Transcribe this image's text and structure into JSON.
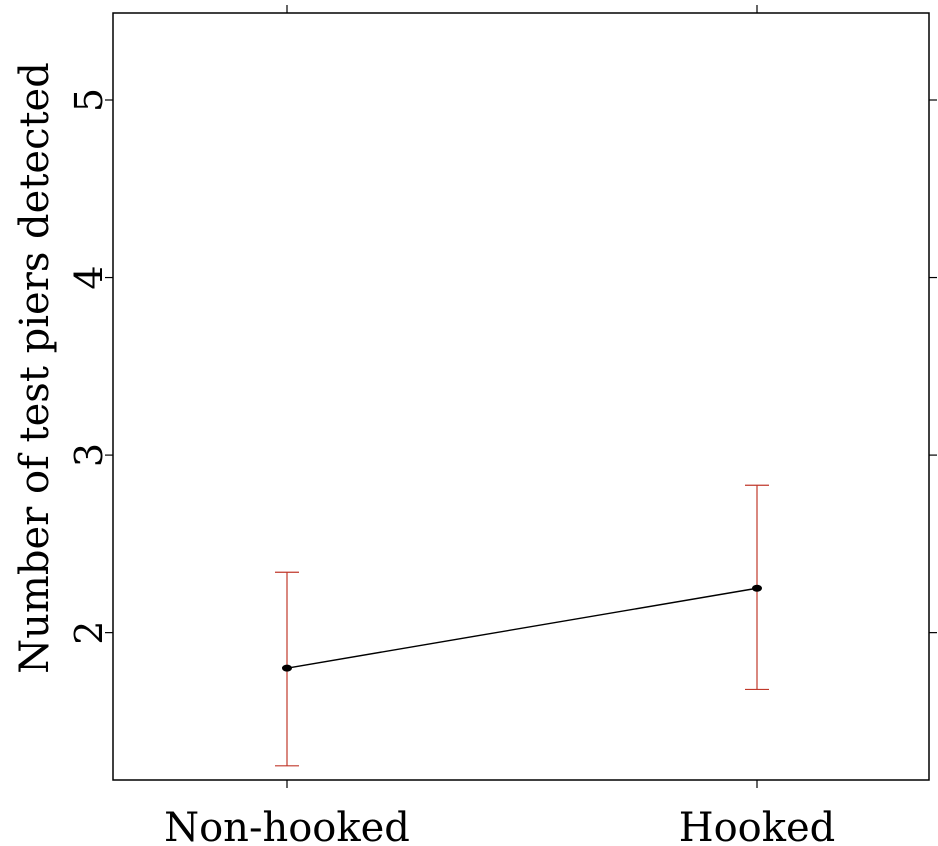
{
  "chart_data": {
    "type": "line",
    "title": "",
    "xlabel": "",
    "ylabel": "Number of test piers detected",
    "categories": [
      "Non-hooked",
      "Hooked"
    ],
    "yticks": [
      2,
      3,
      4,
      5
    ],
    "ylim": [
      1.17,
      5.49
    ],
    "grid": false,
    "series": [
      {
        "values": [
          1.8,
          2.25
        ],
        "lower": [
          1.25,
          1.68
        ],
        "upper": [
          2.34,
          2.83
        ]
      }
    ],
    "colors": {
      "line": "#000000",
      "error_bars": "#c0392b",
      "frame": "#000000"
    }
  }
}
